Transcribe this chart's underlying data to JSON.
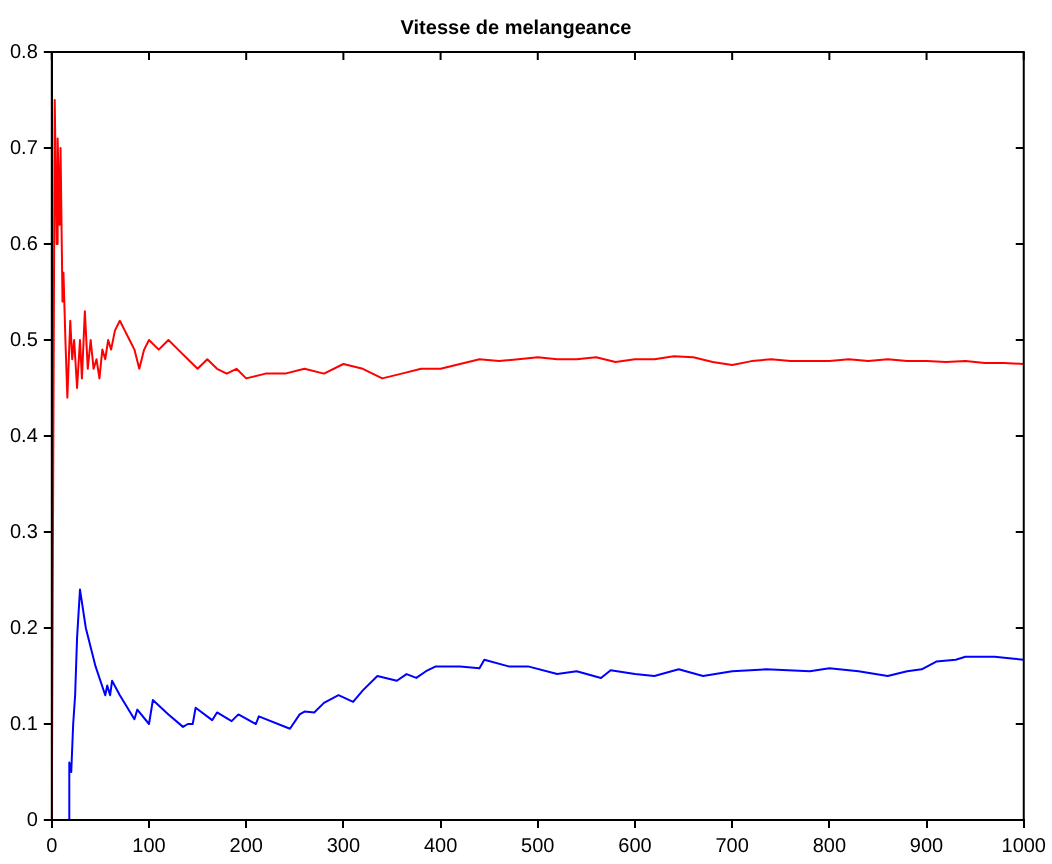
{
  "chart_data": {
    "type": "line",
    "title": "Vitesse de melangeance",
    "xlim": [
      0,
      1000
    ],
    "xticks": [
      0,
      100,
      200,
      300,
      400,
      500,
      600,
      700,
      800,
      900,
      1000
    ],
    "ylim": [
      0,
      0.8
    ],
    "yticks": [
      0,
      0.1,
      0.2,
      0.3,
      0.4,
      0.5,
      0.6,
      0.7,
      0.8
    ],
    "grid": false,
    "legend": false,
    "marker": "none",
    "line_style": "solid",
    "series": [
      {
        "color": "#ff0000",
        "x": [
          0,
          3,
          5,
          6,
          8,
          9,
          11,
          12,
          14,
          16,
          19,
          21,
          23,
          26,
          29,
          31,
          34,
          37,
          40,
          43,
          46,
          49,
          52,
          55,
          58,
          61,
          65,
          70,
          75,
          80,
          85,
          90,
          95,
          100,
          110,
          120,
          130,
          140,
          150,
          160,
          170,
          180,
          190,
          200,
          220,
          240,
          260,
          280,
          300,
          320,
          340,
          360,
          380,
          400,
          420,
          440,
          460,
          480,
          500,
          520,
          540,
          560,
          580,
          600,
          620,
          640,
          660,
          680,
          700,
          720,
          740,
          760,
          780,
          800,
          820,
          840,
          860,
          880,
          900,
          920,
          940,
          960,
          980,
          1000
        ],
        "values": [
          0,
          0.75,
          0.6,
          0.71,
          0.62,
          0.7,
          0.54,
          0.57,
          0.5,
          0.44,
          0.52,
          0.48,
          0.5,
          0.45,
          0.5,
          0.46,
          0.53,
          0.47,
          0.5,
          0.47,
          0.48,
          0.46,
          0.49,
          0.48,
          0.5,
          0.49,
          0.51,
          0.52,
          0.51,
          0.5,
          0.49,
          0.47,
          0.49,
          0.5,
          0.49,
          0.5,
          0.49,
          0.48,
          0.47,
          0.48,
          0.47,
          0.465,
          0.47,
          0.46,
          0.465,
          0.465,
          0.47,
          0.465,
          0.475,
          0.47,
          0.46,
          0.465,
          0.47,
          0.47,
          0.475,
          0.48,
          0.478,
          0.48,
          0.482,
          0.48,
          0.48,
          0.482,
          0.477,
          0.48,
          0.48,
          0.483,
          0.482,
          0.477,
          0.474,
          0.478,
          0.48,
          0.478,
          0.478,
          0.478,
          0.48,
          0.478,
          0.48,
          0.478,
          0.478,
          0.477,
          0.478,
          0.476,
          0.476,
          0.475
        ]
      },
      {
        "color": "#0000ff",
        "x": [
          0,
          17,
          18,
          20,
          22,
          24,
          26,
          29,
          35,
          45,
          55,
          57,
          60,
          62,
          70,
          85,
          88,
          100,
          104,
          120,
          135,
          140,
          145,
          148,
          165,
          170,
          185,
          192,
          210,
          213,
          245,
          255,
          260,
          270,
          280,
          295,
          310,
          320,
          335,
          355,
          365,
          375,
          385,
          395,
          420,
          440,
          445,
          470,
          490,
          520,
          540,
          565,
          575,
          600,
          620,
          645,
          670,
          700,
          735,
          780,
          800,
          830,
          860,
          880,
          895,
          910,
          930,
          940,
          970,
          990,
          1000
        ],
        "values": [
          0,
          0,
          0.06,
          0.05,
          0.1,
          0.13,
          0.19,
          0.24,
          0.2,
          0.16,
          0.13,
          0.14,
          0.13,
          0.145,
          0.13,
          0.105,
          0.115,
          0.1,
          0.125,
          0.11,
          0.097,
          0.1,
          0.1,
          0.117,
          0.104,
          0.112,
          0.103,
          0.11,
          0.1,
          0.108,
          0.095,
          0.11,
          0.113,
          0.112,
          0.122,
          0.13,
          0.123,
          0.135,
          0.15,
          0.145,
          0.152,
          0.148,
          0.155,
          0.16,
          0.16,
          0.158,
          0.167,
          0.16,
          0.16,
          0.152,
          0.155,
          0.148,
          0.156,
          0.152,
          0.15,
          0.157,
          0.15,
          0.155,
          0.157,
          0.155,
          0.158,
          0.155,
          0.15,
          0.155,
          0.157,
          0.165,
          0.167,
          0.17,
          0.17,
          0.168,
          0.167
        ]
      }
    ]
  }
}
